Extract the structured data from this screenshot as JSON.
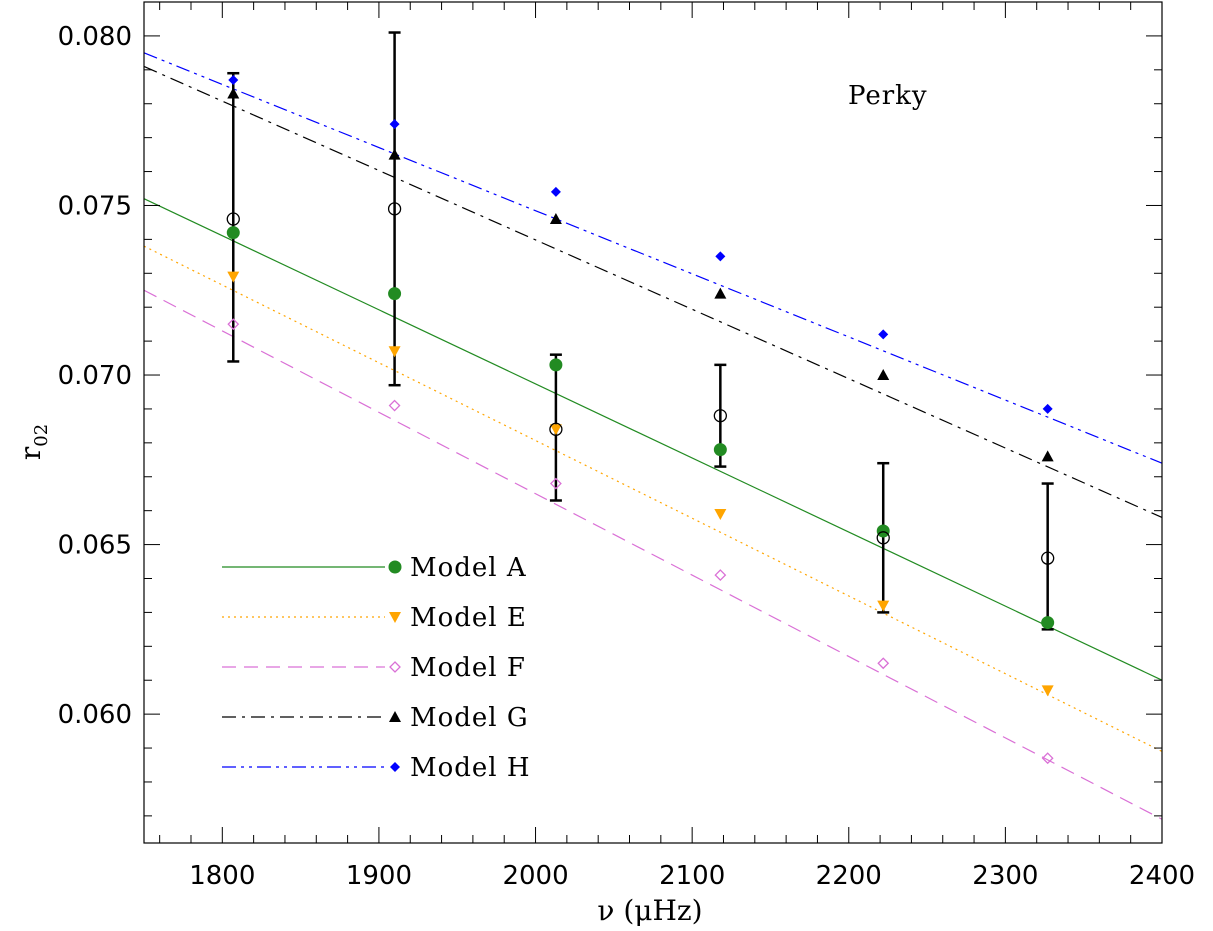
{
  "chart_data": {
    "type": "line",
    "title": "",
    "annotation": "Perky",
    "xlabel": "ν (μHz)",
    "ylabel": "r02",
    "ylabel_main": "r",
    "ylabel_sub": "02",
    "xlim": [
      1750,
      2400
    ],
    "ylim": [
      0.0562,
      0.081
    ],
    "xticks": [
      1800,
      1900,
      2000,
      2100,
      2200,
      2300,
      2400
    ],
    "yticks": [
      0.06,
      0.065,
      0.07,
      0.075,
      0.08
    ],
    "xtick_labels": [
      "1800",
      "1900",
      "2000",
      "2100",
      "2200",
      "2300",
      "2400"
    ],
    "ytick_labels": [
      "0.060",
      "0.065",
      "0.070",
      "0.075",
      "0.080"
    ],
    "grid": false,
    "legend_position": "bottom-left",
    "observations": {
      "x": [
        1807,
        1910,
        2013,
        2118,
        2222,
        2327
      ],
      "y": [
        0.0746,
        0.0749,
        0.0684,
        0.0688,
        0.0652,
        0.0646
      ],
      "err_low": [
        0.0704,
        0.0697,
        0.0663,
        0.0673,
        0.063,
        0.0625
      ],
      "err_high": [
        0.0789,
        0.0801,
        0.0706,
        0.0703,
        0.0674,
        0.0668
      ]
    },
    "series": [
      {
        "name": "Model A",
        "color": "#228B22",
        "line": "solid",
        "marker": "filled-circle",
        "x": [
          1807,
          1910,
          2013,
          2118,
          2222,
          2327
        ],
        "y": [
          0.0742,
          0.0724,
          0.0703,
          0.0678,
          0.0654,
          0.0627
        ],
        "line_x": [
          1750,
          2400
        ],
        "line_y": [
          0.0752,
          0.061
        ]
      },
      {
        "name": "Model E",
        "color": "#FFA500",
        "line": "dotted",
        "marker": "filled-triangle-down",
        "x": [
          1807,
          1910,
          2013,
          2118,
          2222,
          2327
        ],
        "y": [
          0.0729,
          0.0707,
          0.0684,
          0.0659,
          0.0632,
          0.0607
        ],
        "line_x": [
          1750,
          2400
        ],
        "line_y": [
          0.0738,
          0.0589
        ]
      },
      {
        "name": "Model F",
        "color": "#DA70D6",
        "line": "dashed",
        "marker": "open-diamond",
        "x": [
          1807,
          1910,
          2013,
          2118,
          2222,
          2327
        ],
        "y": [
          0.0715,
          0.0691,
          0.0668,
          0.0641,
          0.0615,
          0.0587
        ],
        "line_x": [
          1750,
          2400
        ],
        "line_y": [
          0.0725,
          0.0569
        ]
      },
      {
        "name": "Model G",
        "color": "#000000",
        "line": "dash-dot",
        "marker": "filled-triangle-up",
        "x": [
          1807,
          1910,
          2013,
          2118,
          2222,
          2327
        ],
        "y": [
          0.0783,
          0.0765,
          0.0746,
          0.0724,
          0.07,
          0.0676
        ],
        "line_x": [
          1750,
          2400
        ],
        "line_y": [
          0.0791,
          0.0658
        ]
      },
      {
        "name": "Model H",
        "color": "#0000FF",
        "line": "dash-dot-dot",
        "marker": "filled-diamond",
        "x": [
          1807,
          1910,
          2013,
          2118,
          2222,
          2327
        ],
        "y": [
          0.0787,
          0.0774,
          0.0754,
          0.0735,
          0.0712,
          0.069
        ],
        "line_x": [
          1750,
          2400
        ],
        "line_y": [
          0.0795,
          0.0674
        ]
      }
    ]
  }
}
